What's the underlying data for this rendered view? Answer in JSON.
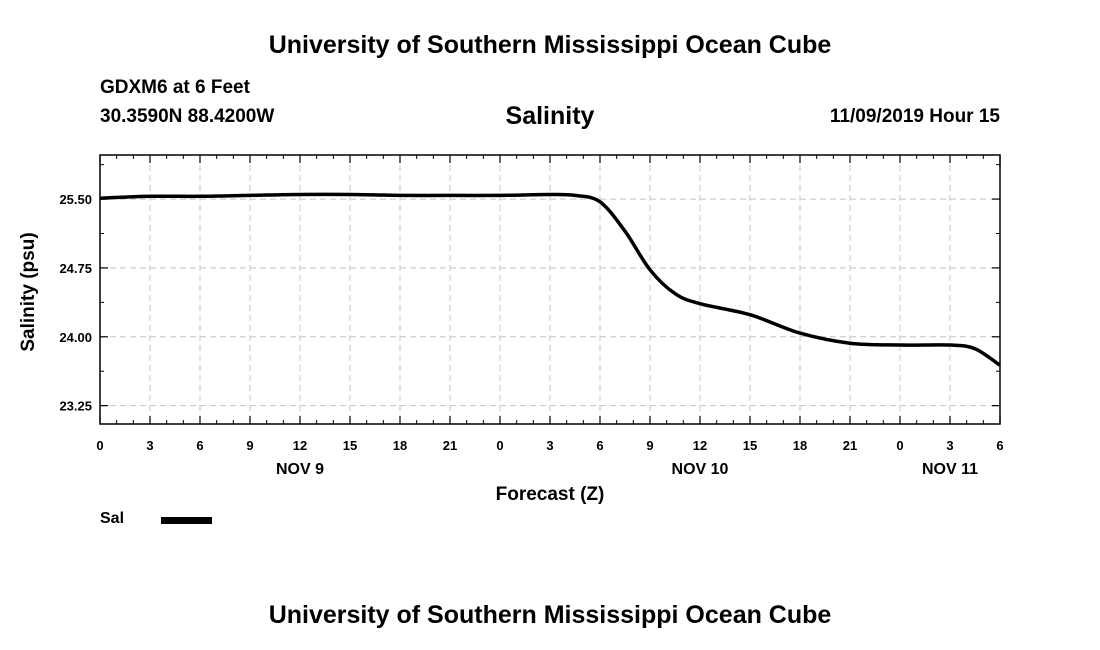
{
  "header": {
    "org_title": "University of Southern Mississippi Ocean Cube",
    "station": "GDXM6 at 6 Feet",
    "coords": "30.3590N 88.4200W",
    "timestamp": "11/09/2019 Hour 15"
  },
  "footer": {
    "org_title": "University of Southern Mississippi Ocean Cube"
  },
  "legend": {
    "label": "Sal",
    "color": "#000000"
  },
  "chart_data": {
    "type": "line",
    "title": "Salinity",
    "ylabel": "Salinity (psu)",
    "xlabel": "Forecast (Z)",
    "xlim": [
      0,
      54
    ],
    "ylim": [
      23.05,
      25.98
    ],
    "yticks": [
      23.25,
      24.0,
      24.75,
      25.5
    ],
    "ytick_labels": [
      "23.25",
      "24.00",
      "24.75",
      "25.50"
    ],
    "xticks": [
      0,
      3,
      6,
      9,
      12,
      15,
      18,
      21,
      24,
      27,
      30,
      33,
      36,
      39,
      42,
      45,
      48,
      51,
      54
    ],
    "xtick_labels": [
      "0",
      "3",
      "6",
      "9",
      "12",
      "15",
      "18",
      "21",
      "0",
      "3",
      "6",
      "9",
      "12",
      "15",
      "18",
      "21",
      "0",
      "3",
      "6"
    ],
    "day_labels": [
      {
        "label": "NOV 9",
        "at": 12
      },
      {
        "label": "NOV 10",
        "at": 36
      },
      {
        "label": "NOV 11",
        "at": 51
      }
    ],
    "grid": true,
    "series": [
      {
        "name": "Sal",
        "color": "#000000",
        "x": [
          0,
          3,
          6,
          9,
          12,
          15,
          18,
          21,
          24,
          27,
          28.5,
          30,
          31.5,
          33,
          34.5,
          36,
          39,
          42,
          45,
          48,
          51,
          52.5,
          54
        ],
        "values": [
          25.51,
          25.53,
          25.53,
          25.54,
          25.55,
          25.55,
          25.54,
          25.54,
          25.54,
          25.55,
          25.54,
          25.47,
          25.15,
          24.73,
          24.47,
          24.36,
          24.24,
          24.04,
          23.93,
          23.91,
          23.91,
          23.87,
          23.69
        ]
      }
    ]
  }
}
